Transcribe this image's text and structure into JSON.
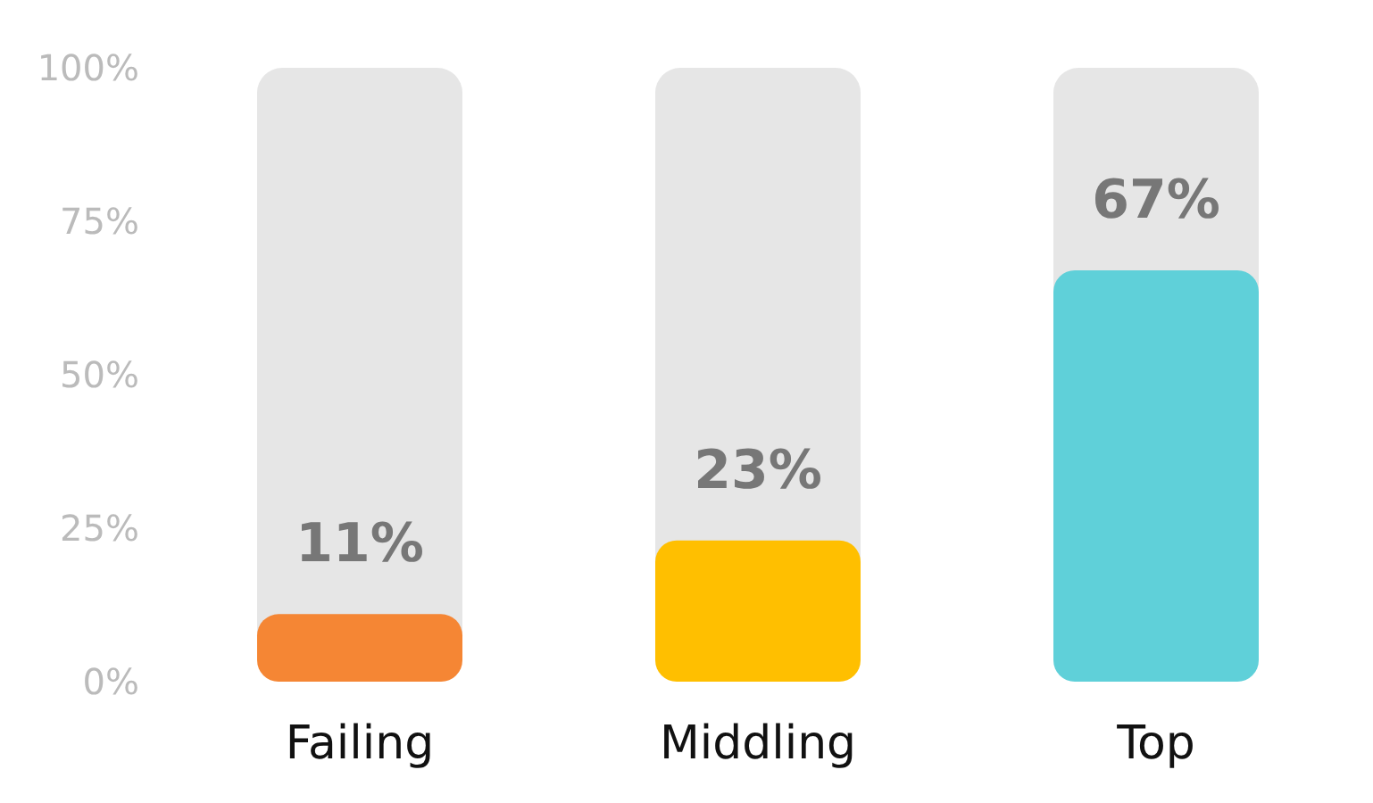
{
  "chart_data": {
    "type": "bar",
    "categories": [
      "Failing",
      "Middling",
      "Top"
    ],
    "values": [
      11,
      23,
      67
    ],
    "colors": [
      "#f58634",
      "#ffbf00",
      "#5fd0d9"
    ],
    "value_labels": [
      "11%",
      "23%",
      "67%"
    ],
    "ylim": [
      0,
      100
    ],
    "yticks": [
      {
        "value": 0,
        "label": "0%"
      },
      {
        "value": 25,
        "label": "25%"
      },
      {
        "value": 50,
        "label": "50%"
      },
      {
        "value": 75,
        "label": "75%"
      },
      {
        "value": 100,
        "label": "100%"
      }
    ],
    "grid": false
  }
}
